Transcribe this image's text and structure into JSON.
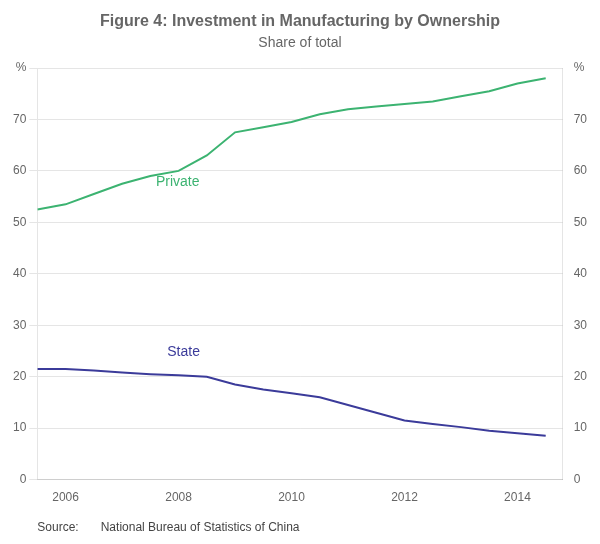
{
  "chart_data": {
    "type": "line",
    "title": "Figure 4: Investment in Manufacturing by Ownership",
    "subtitle": "Share of total",
    "source": "Source:    National Bureau of Statistics of China",
    "series": [
      {
        "name": "Private",
        "color": "#3CB371",
        "x": [
          2005.5,
          2006,
          2006.5,
          2007,
          2007.5,
          2008,
          2008.25,
          2008.5,
          2009,
          2009.5,
          2010,
          2010.5,
          2011,
          2011.5,
          2012,
          2012.5,
          2013,
          2013.5,
          2014,
          2014.5
        ],
        "values": [
          52.5,
          53.5,
          55.5,
          57.5,
          59.0,
          60.0,
          61.5,
          63.0,
          67.5,
          68.5,
          69.5,
          71.0,
          72.0,
          72.5,
          73.0,
          73.5,
          74.5,
          75.5,
          77.0,
          78.0
        ]
      },
      {
        "name": "State",
        "color": "#3B3B9A",
        "x": [
          2005.5,
          2006,
          2006.5,
          2007,
          2007.5,
          2008,
          2008.5,
          2009,
          2009.5,
          2010,
          2010.5,
          2011,
          2011.5,
          2012,
          2012.5,
          2013,
          2013.5,
          2014,
          2014.5
        ],
        "values": [
          21.5,
          21.5,
          21.2,
          20.8,
          20.5,
          20.3,
          20.0,
          18.5,
          17.5,
          16.8,
          16.0,
          14.5,
          13.0,
          11.5,
          10.8,
          10.2,
          9.5,
          9.0,
          8.5
        ]
      }
    ],
    "annotations": [
      {
        "text": "Private",
        "x": 2007.6,
        "y": 56.5,
        "color": "#3CB371"
      },
      {
        "text": "State",
        "x": 2007.8,
        "y": 23.5,
        "color": "#3B3B9A"
      }
    ],
    "xlim": [
      2005.5,
      2014.8
    ],
    "xticks": [
      2006,
      2008,
      2010,
      2012,
      2014
    ],
    "ylim": [
      0,
      80
    ],
    "yticks": [
      0,
      10,
      20,
      30,
      40,
      50,
      60,
      70,
      {
        "value": 80,
        "label": "%"
      }
    ],
    "y2lim": [
      0,
      80
    ],
    "y2ticks": [
      0,
      10,
      20,
      30,
      40,
      50,
      60,
      70,
      {
        "value": 80,
        "label": "%"
      }
    ],
    "grid": "y",
    "legend": false
  }
}
